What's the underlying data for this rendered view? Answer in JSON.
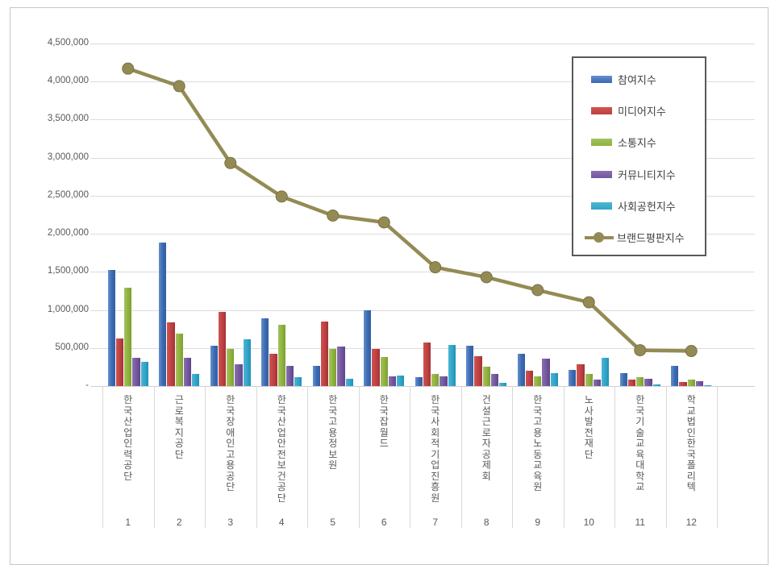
{
  "chart_data": {
    "type": "bar",
    "title": "",
    "categories": [
      "한국산업인력공단",
      "근로복지공단",
      "한국장애인고용공단",
      "한국산업안전보건공단",
      "한국고용정보원",
      "한국잡월드",
      "한국사회적기업진흥원",
      "건설근로자공제회",
      "한국고용노동교육원",
      "노사발전재단",
      "한국기술교육대학교",
      "학교법인한국폴리텍"
    ],
    "rank_labels": [
      "1",
      "2",
      "3",
      "4",
      "5",
      "6",
      "7",
      "8",
      "9",
      "10",
      "11",
      "12"
    ],
    "series": [
      {
        "name": "참여지수",
        "type": "bar",
        "color": "#3b69b3",
        "color_light": "#6390cb",
        "color_dark": "#345e9f",
        "values": [
          1530000,
          1880000,
          530000,
          890000,
          270000,
          1000000,
          120000,
          530000,
          425000,
          215000,
          165000,
          270000
        ]
      },
      {
        "name": "미디어지수",
        "type": "bar",
        "color": "#bf4142",
        "color_light": "#ce5450",
        "color_dark": "#a33234",
        "values": [
          620000,
          840000,
          975000,
          420000,
          850000,
          485000,
          570000,
          395000,
          200000,
          285000,
          90000,
          55000
        ]
      },
      {
        "name": "소통지수",
        "type": "bar",
        "color": "#8fb23c",
        "color_light": "#a3c162",
        "color_dark": "#7c9f33",
        "values": [
          1290000,
          690000,
          490000,
          800000,
          490000,
          380000,
          160000,
          255000,
          125000,
          160000,
          115000,
          90000
        ]
      },
      {
        "name": "커뮤니티지수",
        "type": "bar",
        "color": "#72579f",
        "color_light": "#8a6fb0",
        "color_dark": "#5f4689",
        "values": [
          370000,
          370000,
          285000,
          260000,
          515000,
          125000,
          130000,
          160000,
          355000,
          80000,
          100000,
          60000
        ]
      },
      {
        "name": "사회공헌지수",
        "type": "bar",
        "color": "#30a5c9",
        "color_light": "#4fb4d2",
        "color_dark": "#2191b6",
        "values": [
          320000,
          160000,
          610000,
          115000,
          95000,
          140000,
          535000,
          40000,
          165000,
          375000,
          20000,
          15000
        ]
      },
      {
        "name": "브랜드평판지수",
        "type": "line",
        "color": "#948b54",
        "color_dark": "#7a7243",
        "values": [
          4170000,
          3940000,
          2930000,
          2490000,
          2240000,
          2150000,
          1560000,
          1430000,
          1260000,
          1100000,
          470000,
          460000
        ]
      }
    ],
    "y_axis": {
      "min": 0,
      "max": 4500000,
      "tick_interval": 500000,
      "tick_labels": [
        "4,500,000",
        "4,000,000",
        "3,500,000",
        "3,000,000",
        "2,500,000",
        "2,000,000",
        "1,500,000",
        "1,000,000",
        "500,000",
        "-"
      ]
    },
    "x_axis": {
      "label": ""
    },
    "legend_position": "top-right",
    "grid": true,
    "colors": {
      "gridline": "#dcdcdc",
      "axis_text": "#595959",
      "legend_border": "#595959",
      "outer_border": "#c6c6c6",
      "background": "#ffffff"
    }
  }
}
